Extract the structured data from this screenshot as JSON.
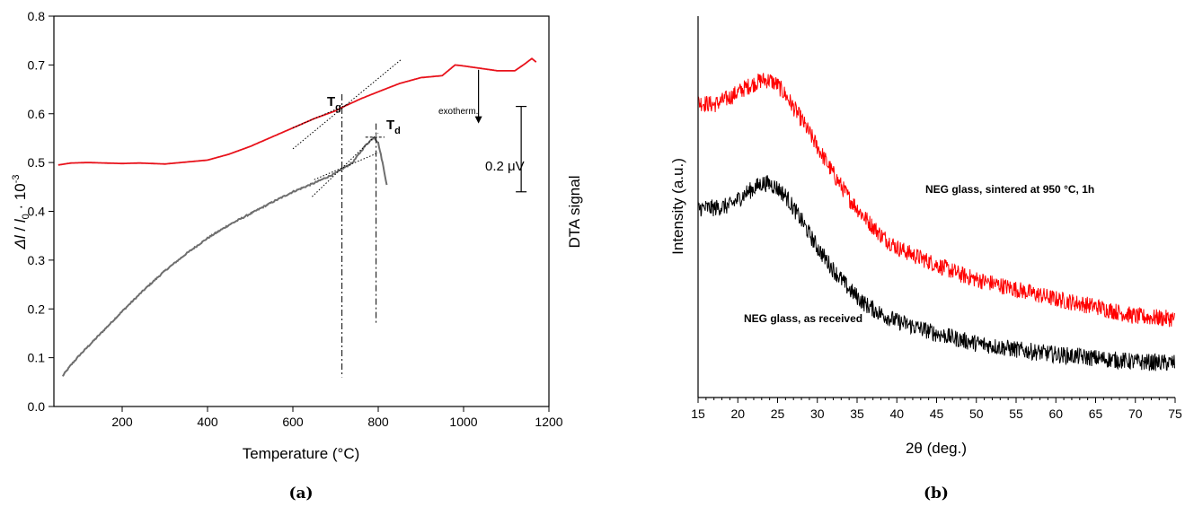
{
  "chart_data": [
    {
      "panel_label": "(a)",
      "type": "line",
      "xlabel": "Temperature (°C)",
      "ylabel_left": "Δl / l0 · 10-3",
      "ylabel_right": "DTA signal",
      "xlim": [
        40,
        1200
      ],
      "ylim": [
        0.0,
        0.8
      ],
      "x_ticks": [
        "200",
        "400",
        "600",
        "800",
        "1000",
        "1200"
      ],
      "y_ticks": [
        "0.0",
        "0.1",
        "0.2",
        "0.3",
        "0.4",
        "0.5",
        "0.6",
        "0.7",
        "0.8"
      ],
      "colors": {
        "dta": "#e8121b",
        "dilatometer": "#6e6e6e",
        "guides": "#000000"
      },
      "series": [
        {
          "key": "dta",
          "x": [
            50,
            80,
            120,
            200,
            240,
            300,
            400,
            450,
            500,
            550,
            600,
            650,
            700,
            720,
            760,
            800,
            850,
            900,
            950,
            980,
            1000,
            1040,
            1080,
            1120,
            1140,
            1160,
            1170
          ],
          "values": [
            0.495,
            0.499,
            0.5,
            0.498,
            0.499,
            0.497,
            0.505,
            0.517,
            0.533,
            0.552,
            0.571,
            0.59,
            0.606,
            0.615,
            0.631,
            0.645,
            0.662,
            0.674,
            0.678,
            0.7,
            0.698,
            0.693,
            0.688,
            0.688,
            0.7,
            0.713,
            0.706
          ]
        },
        {
          "key": "dilatometer",
          "x": [
            60,
            80,
            100,
            150,
            200,
            250,
            300,
            350,
            400,
            450,
            500,
            550,
            600,
            650,
            700,
            740,
            770,
            790,
            800,
            810,
            820
          ],
          "values": [
            0.062,
            0.085,
            0.105,
            0.15,
            0.195,
            0.238,
            0.278,
            0.313,
            0.345,
            0.372,
            0.395,
            0.418,
            0.44,
            0.458,
            0.478,
            0.5,
            0.535,
            0.552,
            0.54,
            0.5,
            0.455
          ]
        }
      ],
      "annotations": {
        "tg": "Tg",
        "td": "Td",
        "exotherm": "exotherm.",
        "scale_bar": "0.2 μV"
      },
      "guides": {
        "tg_x": 715,
        "td_x": 795,
        "dta_tangent_low": [
          [
            600,
            0.528
          ],
          [
            855,
            0.712
          ]
        ],
        "dta_tangent_high": [
          [
            600,
            0.571
          ],
          [
            730,
            0.62
          ]
        ],
        "dil_tangent_low": [
          [
            645,
            0.43
          ],
          [
            800,
            0.56
          ]
        ],
        "dil_tangent_high": [
          [
            650,
            0.465
          ],
          [
            800,
            0.52
          ]
        ],
        "td_cap": [
          [
            770,
            0.552
          ],
          [
            815,
            0.552
          ]
        ],
        "exotherm_arrow": {
          "x": 1035,
          "from": 0.69,
          "to": 0.58
        },
        "scale_bar": {
          "x": 1135,
          "from": 0.615,
          "to": 0.44
        }
      }
    },
    {
      "panel_label": "(b)",
      "type": "line",
      "xlabel": "2θ (deg.)",
      "ylabel": "Intensity (a.u.)",
      "xlim": [
        15,
        75
      ],
      "x_ticks": [
        "15",
        "20",
        "25",
        "30",
        "35",
        "40",
        "45",
        "50",
        "55",
        "60",
        "65",
        "70",
        "75"
      ],
      "y_ticks_shown": false,
      "colors": {
        "sintered": "#ff0000",
        "received": "#000000"
      },
      "series": [
        {
          "name": "NEG glass, sintered at 950 °C, 1h",
          "key": "sintered",
          "x": [
            15,
            17,
            19,
            21,
            23,
            24,
            25,
            26,
            27,
            28,
            30,
            32,
            34,
            36,
            38,
            40,
            42,
            45,
            48,
            50,
            55,
            60,
            65,
            70,
            75
          ],
          "values": [
            1.0,
            0.99,
            1.02,
            1.06,
            1.09,
            1.09,
            1.07,
            1.03,
            0.98,
            0.93,
            0.82,
            0.71,
            0.61,
            0.53,
            0.46,
            0.41,
            0.38,
            0.34,
            0.3,
            0.28,
            0.24,
            0.2,
            0.17,
            0.13,
            0.12
          ]
        },
        {
          "name": "NEG glass, as received",
          "key": "received",
          "x": [
            15,
            17,
            19,
            21,
            23,
            24,
            25,
            26,
            27,
            28,
            30,
            32,
            34,
            36,
            38,
            40,
            42,
            45,
            48,
            50,
            55,
            60,
            65,
            70,
            75
          ],
          "values": [
            0.57,
            0.57,
            0.58,
            0.63,
            0.67,
            0.67,
            0.65,
            0.62,
            0.57,
            0.52,
            0.41,
            0.32,
            0.24,
            0.18,
            0.14,
            0.11,
            0.09,
            0.06,
            0.035,
            0.02,
            -0.005,
            -0.025,
            -0.04,
            -0.055,
            -0.06
          ]
        }
      ]
    }
  ]
}
